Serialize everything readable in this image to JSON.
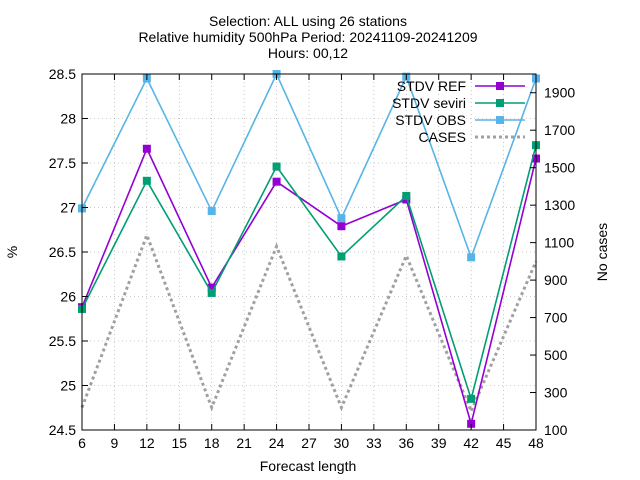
{
  "chart_data": {
    "type": "line",
    "title_lines": [
      "Selection: ALL using    26 stations",
      "Relative humidity 500hPa   Period: 20241109-20241209",
      "Hours: 00,12"
    ],
    "xlabel": "Forecast length",
    "ylabel": "%",
    "y2label": "No cases",
    "x": [
      6,
      12,
      18,
      24,
      30,
      36,
      42,
      48
    ],
    "xticks": [
      6,
      9,
      12,
      15,
      18,
      21,
      24,
      27,
      30,
      33,
      36,
      39,
      42,
      45,
      48
    ],
    "xlim": [
      6,
      48
    ],
    "ylim": [
      24.5,
      28.5
    ],
    "yticks": [
      24.5,
      25,
      25.5,
      26,
      26.5,
      27,
      27.5,
      28,
      28.5
    ],
    "y2lim": [
      100,
      2000
    ],
    "y2ticks": [
      100,
      300,
      500,
      700,
      900,
      1100,
      1300,
      1500,
      1700,
      1900
    ],
    "grid": true,
    "legend_position": "top-right",
    "series": [
      {
        "name": "STDV REF",
        "axis": "y",
        "color": "#9400d3",
        "marker": "square",
        "values": [
          25.88,
          27.66,
          26.1,
          27.29,
          26.79,
          27.09,
          24.57,
          27.55
        ]
      },
      {
        "name": "STDV seviri",
        "axis": "y",
        "color": "#009e73",
        "marker": "square",
        "values": [
          25.86,
          27.3,
          26.04,
          27.46,
          26.45,
          27.13,
          24.85,
          27.7
        ]
      },
      {
        "name": "STDV OBS",
        "axis": "y",
        "color": "#56b4e9",
        "marker": "square",
        "values": [
          26.99,
          28.45,
          26.96,
          28.5,
          26.88,
          28.47,
          26.44,
          28.45
        ]
      },
      {
        "name": "CASES",
        "axis": "y2",
        "color": "#a0a0a0",
        "dashed": true,
        "values": [
          220,
          1140,
          220,
          1080,
          220,
          1030,
          200,
          1000
        ]
      }
    ]
  }
}
